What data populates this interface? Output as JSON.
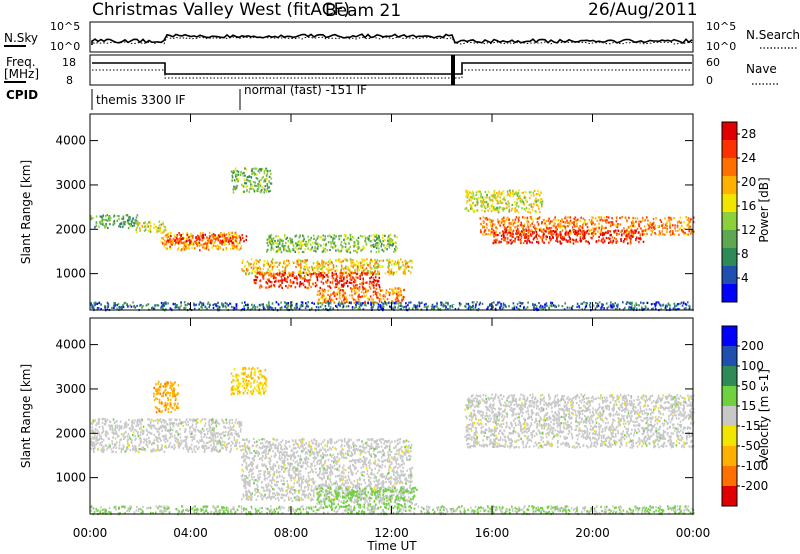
{
  "header": {
    "station": "Christmas Valley West (fitACF)",
    "beam": "Beam 21",
    "date": "26/Aug/2011"
  },
  "noise_panel": {
    "left_label": "N.Sky",
    "left_ticks": [
      "10^5",
      "10^0"
    ],
    "right_ticks": [
      "10^5",
      "10^0"
    ],
    "right_label": "N.Search"
  },
  "freq_panel": {
    "left_label_1": "Freq.",
    "left_label_2": "[MHz]",
    "left_ticks": [
      "18",
      "8"
    ],
    "right_ticks": [
      "60",
      "0"
    ],
    "right_label": "Nave"
  },
  "cpid": {
    "label": "CPID",
    "segments": [
      {
        "text": "themis 3300 IF",
        "start_hour": 0.0,
        "end_hour": 6.0
      },
      {
        "text": "normal (fast) -151 IF",
        "start_hour": 6.0,
        "end_hour": 24.0
      }
    ]
  },
  "chart_data": [
    {
      "type": "heatmap",
      "name": "power",
      "ylabel": "Slant Range [km]",
      "yticks": [
        "1000",
        "2000",
        "3000",
        "4000"
      ],
      "ylim": [
        180,
        4600
      ],
      "colorbar_label": "Power [dB]",
      "colorbar_ticks": [
        "4",
        "8",
        "12",
        "16",
        "20",
        "24",
        "28"
      ],
      "colorbar_range": [
        0,
        30
      ],
      "colors": [
        "#0000ff",
        "#1f4faf",
        "#2e8b57",
        "#5fa852",
        "#8cd03c",
        "#f2e600",
        "#ffb000",
        "#ff7000",
        "#ff3000",
        "#e00000"
      ],
      "bands": [
        {
          "t": [
            0.0,
            1.9
          ],
          "r": [
            2050,
            2350
          ],
          "v": 10
        },
        {
          "t": [
            1.8,
            3.0
          ],
          "r": [
            1950,
            2200
          ],
          "v": 16
        },
        {
          "t": [
            2.8,
            6.0
          ],
          "r": [
            1550,
            1950
          ],
          "v": 20
        },
        {
          "t": [
            3.0,
            6.2
          ],
          "r": [
            1700,
            1900
          ],
          "v": 26
        },
        {
          "t": [
            5.6,
            7.2
          ],
          "r": [
            2850,
            3400
          ],
          "v": 12
        },
        {
          "t": [
            6.0,
            12.8
          ],
          "r": [
            1000,
            1350
          ],
          "v": 18
        },
        {
          "t": [
            6.5,
            11.5
          ],
          "r": [
            700,
            1050
          ],
          "v": 26
        },
        {
          "t": [
            7.0,
            12.2
          ],
          "r": [
            1500,
            1900
          ],
          "v": 12
        },
        {
          "t": [
            9.0,
            12.5
          ],
          "r": [
            350,
            700
          ],
          "v": 22
        },
        {
          "t": [
            14.9,
            18.0
          ],
          "r": [
            2400,
            2900
          ],
          "v": 16
        },
        {
          "t": [
            15.5,
            24.0
          ],
          "r": [
            1900,
            2300
          ],
          "v": 22
        },
        {
          "t": [
            16.0,
            22.0
          ],
          "r": [
            1700,
            2000
          ],
          "v": 27
        },
        {
          "t": [
            0.0,
            24.0
          ],
          "r": [
            200,
            380
          ],
          "v": 6
        }
      ]
    },
    {
      "type": "heatmap",
      "name": "velocity",
      "ylabel": "Slant Range [km]",
      "yticks": [
        "1000",
        "2000",
        "3000",
        "4000"
      ],
      "ylim": [
        180,
        4600
      ],
      "colorbar_label": "Velocity [m s-1]",
      "colorbar_ticks": [
        "200",
        "100",
        "50",
        "15",
        "-15",
        "-50",
        "-100",
        "-200"
      ],
      "colorbar_range": [
        -250,
        250
      ],
      "colors": [
        "#0000ff",
        "#1f4faf",
        "#2e8b57",
        "#6fd040",
        "#c8c8c8",
        "#f2e600",
        "#ffb000",
        "#ff7000",
        "#e00000"
      ],
      "bands": [
        {
          "t": [
            0.0,
            6.0
          ],
          "r": [
            1600,
            2350
          ],
          "v": 0
        },
        {
          "t": [
            6.0,
            12.8
          ],
          "r": [
            500,
            1900
          ],
          "v": 0
        },
        {
          "t": [
            2.5,
            3.5
          ],
          "r": [
            2500,
            3200
          ],
          "v": -120
        },
        {
          "t": [
            5.6,
            7.0
          ],
          "r": [
            2900,
            3500
          ],
          "v": -80
        },
        {
          "t": [
            9.0,
            13.0
          ],
          "r": [
            350,
            800
          ],
          "v": 40
        },
        {
          "t": [
            14.9,
            24.0
          ],
          "r": [
            1700,
            2900
          ],
          "v": 0
        },
        {
          "t": [
            0.0,
            24.0
          ],
          "r": [
            200,
            380
          ],
          "v": 30
        }
      ]
    }
  ],
  "xaxis": {
    "label": "Time UT",
    "ticks": [
      "00:00",
      "04:00",
      "08:00",
      "12:00",
      "16:00",
      "20:00",
      "00:00"
    ]
  }
}
